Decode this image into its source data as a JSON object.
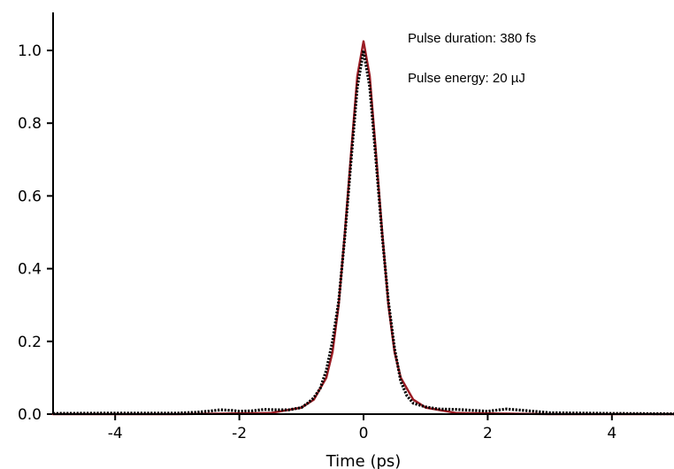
{
  "chart_data": {
    "type": "line",
    "title": "",
    "xlabel": "Time (ps)",
    "ylabel": "",
    "xlim": [
      -5,
      5
    ],
    "ylim": [
      0,
      1.1
    ],
    "grid": false,
    "legend": "none",
    "x_ticks": [
      "-4",
      "-2",
      "0",
      "2",
      "4"
    ],
    "y_ticks": [
      "0.0",
      "0.2",
      "0.4",
      "0.6",
      "0.8",
      "1.0"
    ],
    "annotations": [
      "Pulse duration: 380 fs",
      "Pulse energy: 20 µJ"
    ],
    "colors": {
      "fit": "#9b1c24",
      "measured": "#000000"
    },
    "series": [
      {
        "style": "line",
        "color": "#9b1c24",
        "x": [
          -5.0,
          -3.0,
          -1.5,
          -1.0,
          -0.8,
          -0.6,
          -0.5,
          -0.4,
          -0.3,
          -0.2,
          -0.1,
          0.0,
          0.1,
          0.2,
          0.3,
          0.4,
          0.5,
          0.6,
          0.8,
          1.0,
          1.5,
          3.0,
          5.0
        ],
        "y": [
          0.0,
          0.0,
          0.003,
          0.018,
          0.04,
          0.1,
          0.17,
          0.3,
          0.5,
          0.72,
          0.93,
          1.025,
          0.93,
          0.72,
          0.5,
          0.3,
          0.17,
          0.1,
          0.04,
          0.018,
          0.003,
          0.0,
          0.0
        ]
      },
      {
        "style": "dotted",
        "color": "#000000",
        "x": [
          -5.0,
          -4.0,
          -3.0,
          -2.7,
          -2.5,
          -2.3,
          -2.1,
          -2.0,
          -1.8,
          -1.6,
          -1.4,
          -1.2,
          -1.0,
          -0.9,
          -0.8,
          -0.7,
          -0.6,
          -0.5,
          -0.4,
          -0.3,
          -0.2,
          -0.1,
          0.0,
          0.1,
          0.2,
          0.3,
          0.4,
          0.5,
          0.6,
          0.7,
          0.8,
          1.0,
          1.2,
          1.5,
          1.8,
          2.0,
          2.3,
          2.6,
          3.0,
          3.5,
          4.0,
          5.0
        ],
        "y": [
          0.002,
          0.003,
          0.003,
          0.005,
          0.008,
          0.012,
          0.01,
          0.008,
          0.009,
          0.013,
          0.012,
          0.012,
          0.018,
          0.03,
          0.045,
          0.07,
          0.12,
          0.2,
          0.31,
          0.49,
          0.7,
          0.9,
          1.0,
          0.9,
          0.7,
          0.49,
          0.31,
          0.18,
          0.09,
          0.05,
          0.03,
          0.02,
          0.014,
          0.013,
          0.01,
          0.008,
          0.014,
          0.01,
          0.004,
          0.003,
          0.002,
          0.001
        ]
      }
    ]
  }
}
